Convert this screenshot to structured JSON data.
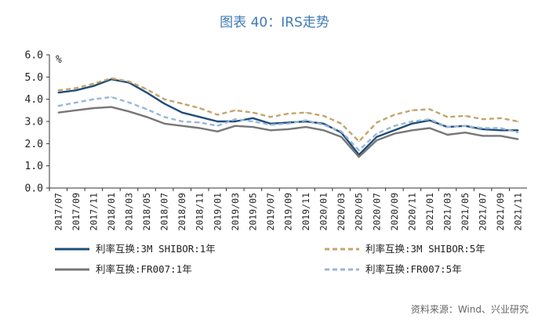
{
  "chart_data": {
    "type": "line",
    "title": "图表 40：IRS走势",
    "ylabel_unit": "%",
    "ylim": [
      0,
      6
    ],
    "yticks": [
      "0.0",
      "1.0",
      "2.0",
      "3.0",
      "4.0",
      "5.0",
      "6.0"
    ],
    "x": [
      "2017/07",
      "2017/09",
      "2017/11",
      "2018/01",
      "2018/03",
      "2018/05",
      "2018/07",
      "2018/09",
      "2018/11",
      "2019/01",
      "2019/03",
      "2019/05",
      "2019/07",
      "2019/09",
      "2019/11",
      "2020/01",
      "2020/03",
      "2020/05",
      "2020/07",
      "2020/09",
      "2020/11",
      "2021/01",
      "2021/03",
      "2021/05",
      "2021/07",
      "2021/09",
      "2021/11"
    ],
    "series": [
      {
        "name": "利率互换:3M SHIBOR:1年",
        "color": "#1f4e79",
        "dash": "solid",
        "values": [
          4.3,
          4.4,
          4.6,
          4.9,
          4.75,
          4.3,
          3.8,
          3.4,
          3.2,
          3.0,
          3.0,
          3.15,
          2.9,
          2.95,
          3.0,
          2.9,
          2.5,
          1.5,
          2.3,
          2.6,
          2.9,
          3.05,
          2.75,
          2.8,
          2.65,
          2.6,
          2.6
        ]
      },
      {
        "name": "利率互换:3M SHIBOR:5年",
        "color": "#c4a46b",
        "dash": "dashed",
        "values": [
          4.4,
          4.5,
          4.7,
          4.95,
          4.8,
          4.45,
          4.0,
          3.8,
          3.6,
          3.3,
          3.5,
          3.4,
          3.2,
          3.35,
          3.4,
          3.25,
          2.9,
          2.1,
          2.95,
          3.3,
          3.5,
          3.55,
          3.2,
          3.25,
          3.1,
          3.15,
          3.0
        ]
      },
      {
        "name": "利率互换:FR007:1年",
        "color": "#777777",
        "dash": "solid",
        "values": [
          3.4,
          3.5,
          3.6,
          3.65,
          3.45,
          3.2,
          2.9,
          2.8,
          2.7,
          2.55,
          2.8,
          2.75,
          2.6,
          2.65,
          2.75,
          2.6,
          2.3,
          1.4,
          2.15,
          2.45,
          2.6,
          2.7,
          2.4,
          2.5,
          2.35,
          2.35,
          2.2
        ]
      },
      {
        "name": "利率互换:FR007:5年",
        "color": "#9ab6d8",
        "dash": "dashed",
        "values": [
          3.7,
          3.85,
          4.0,
          4.1,
          3.85,
          3.55,
          3.2,
          3.0,
          2.95,
          2.8,
          3.1,
          3.0,
          2.85,
          2.9,
          3.05,
          2.85,
          2.55,
          1.7,
          2.45,
          2.8,
          3.0,
          3.1,
          2.75,
          2.8,
          2.7,
          2.7,
          2.5
        ]
      }
    ],
    "source": "资料来源：Wind、兴业研究"
  }
}
